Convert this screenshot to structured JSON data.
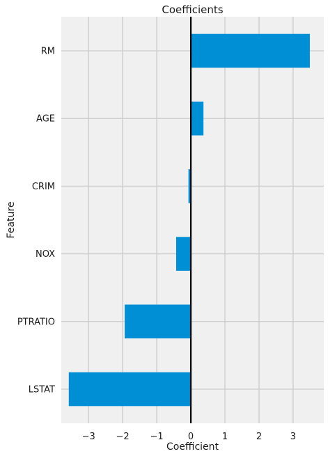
{
  "chart_data": {
    "type": "bar",
    "orientation": "horizontal",
    "title": "Coefficients",
    "xlabel": "Coefficient",
    "ylabel": "Feature",
    "categories": [
      "LSTAT",
      "PTRATIO",
      "NOX",
      "CRIM",
      "AGE",
      "RM"
    ],
    "values": [
      -3.58,
      -1.94,
      -0.43,
      -0.07,
      0.37,
      3.49
    ],
    "xlim": [
      -3.8,
      3.9
    ],
    "xticks": [
      -3,
      -2,
      -1,
      0,
      1,
      2,
      3
    ],
    "xtick_labels": [
      "−3",
      "−2",
      "−1",
      "0",
      "1",
      "2",
      "3"
    ],
    "grid": true,
    "zero_line": true,
    "colors": {
      "bar": "#008fd5",
      "plot_background": "#f0f0f0",
      "grid": "#cbcbcb",
      "zero_line": "#000000"
    }
  }
}
